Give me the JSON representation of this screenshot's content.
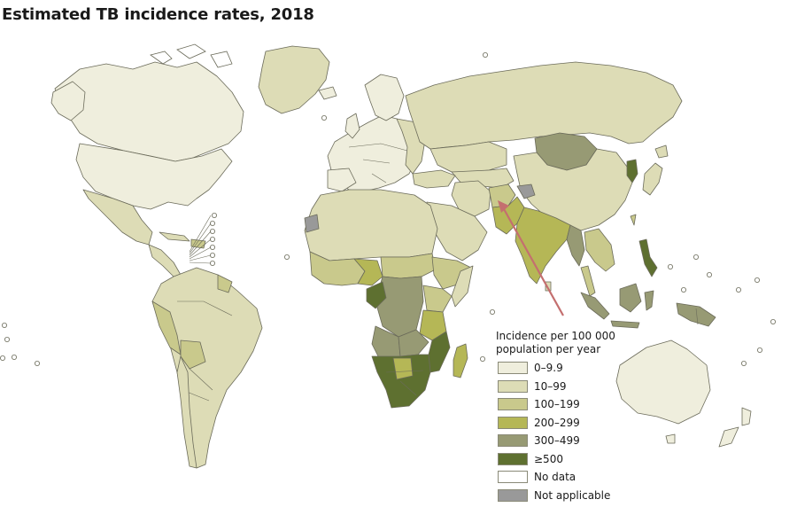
{
  "title": "Estimated TB incidence rates, 2018",
  "legend": {
    "title_line1": "Incidence per 100 000",
    "title_line2": "population per year",
    "items": [
      {
        "label": "0–9.9",
        "color": "#efeedd"
      },
      {
        "label": "10–99",
        "color": "#dddcb6"
      },
      {
        "label": "100–199",
        "color": "#c9c98c"
      },
      {
        "label": "200–299",
        "color": "#b5b756"
      },
      {
        "label": "300–499",
        "color": "#979a74"
      },
      {
        "label": "≥500",
        "color": "#5e7030"
      },
      {
        "label": "No data",
        "color": "#ffffff"
      },
      {
        "label": "Not applicable",
        "color": "#999999"
      }
    ]
  },
  "annotation": {
    "type": "arrow",
    "color": "#c46f6f",
    "points_to": "Pakistan"
  }
}
